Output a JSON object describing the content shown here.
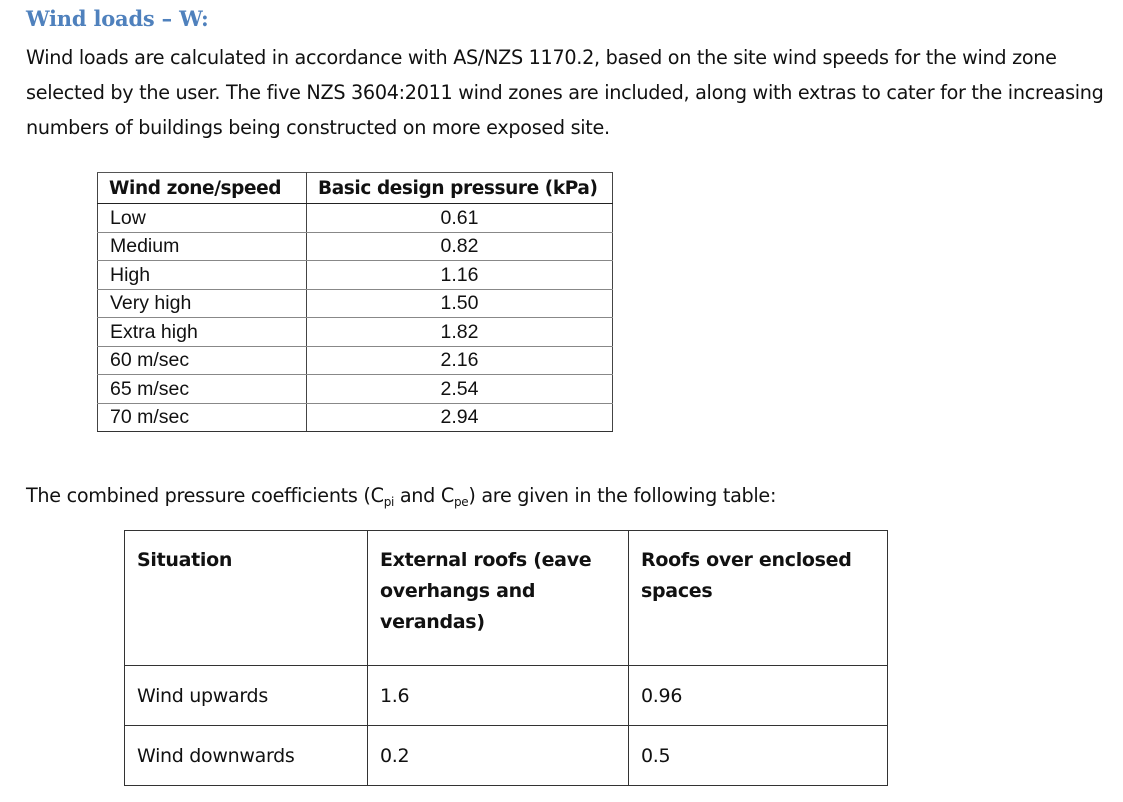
{
  "heading": "Wind loads – W:",
  "paragraph": "Wind loads are calculated in accordance with AS/NZS 1170.2, based on the site wind speeds for the wind zone selected by the user.  The five NZS 3604:2011 wind zones are included, along with extras to cater for the increasing numbers of buildings being constructed on more exposed site.",
  "table1": {
    "headers": [
      "Wind zone/speed",
      "Basic design pressure (kPa)"
    ],
    "rows": [
      [
        "Low",
        "0.61"
      ],
      [
        "Medium",
        "0.82"
      ],
      [
        "High",
        "1.16"
      ],
      [
        "Very high",
        "1.50"
      ],
      [
        "Extra high",
        "1.82"
      ],
      [
        "60 m/sec",
        "2.16"
      ],
      [
        "65 m/sec",
        "2.54"
      ],
      [
        "70 m/sec",
        "2.94"
      ]
    ]
  },
  "intro2": {
    "before": "The combined pressure coefficients (C",
    "sub1": "pi",
    "middle": " and C",
    "sub2": "pe",
    "after": ") are given in the following table:"
  },
  "table2": {
    "headers": [
      "Situation",
      "External roofs (eave overhangs and verandas)",
      "Roofs over enclosed spaces"
    ],
    "rows": [
      [
        "Wind upwards",
        "1.6",
        "0.96"
      ],
      [
        "Wind downwards",
        "0.2",
        "0.5"
      ]
    ]
  }
}
